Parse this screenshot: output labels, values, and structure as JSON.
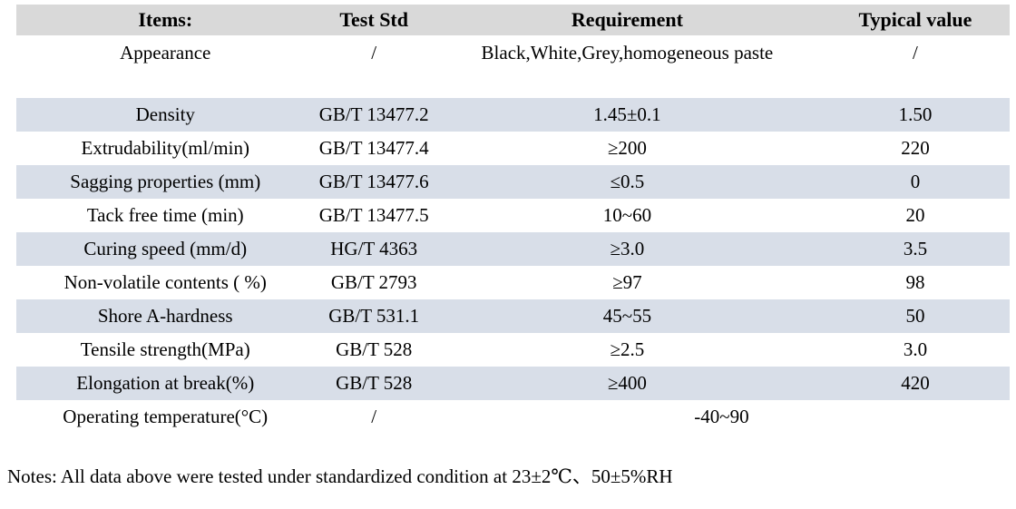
{
  "colors": {
    "page_bg": "#ffffff",
    "header_bg": "#d9d9d9",
    "stripe_bg": "#d8dee8",
    "text": "#000000"
  },
  "table": {
    "headers": [
      "Items:",
      "Test Std",
      "Requirement",
      "Typical value"
    ],
    "rows": [
      {
        "item": "Appearance",
        "test_std": "/",
        "requirement": "Black,White,Grey,homogeneous paste",
        "typical": "/"
      },
      {
        "item": "Density",
        "test_std": "GB/T 13477.2",
        "requirement": "1.45±0.1",
        "typical": "1.50"
      },
      {
        "item": "Extrudability(ml/min)",
        "test_std": "GB/T 13477.4",
        "requirement": "≥200",
        "typical": "220"
      },
      {
        "item": "Sagging properties (mm)",
        "test_std": "GB/T 13477.6",
        "requirement": "≤0.5",
        "typical": "0"
      },
      {
        "item": "Tack free time (min)",
        "test_std": "GB/T 13477.5",
        "requirement": "10~60",
        "typical": "20"
      },
      {
        "item": "Curing speed (mm/d)",
        "test_std": "HG/T 4363",
        "requirement": "≥3.0",
        "typical": "3.5"
      },
      {
        "item": "Non-volatile contents ( %)",
        "test_std": "GB/T 2793",
        "requirement": "≥97",
        "typical": "98"
      },
      {
        "item": "Shore A-hardness",
        "test_std": "GB/T 531.1",
        "requirement": "45~55",
        "typical": "50"
      },
      {
        "item": "Tensile strength(MPa)",
        "test_std": "GB/T 528",
        "requirement": "≥2.5",
        "typical": "3.0"
      },
      {
        "item": "Elongation at break(%)",
        "test_std": "GB/T 528",
        "requirement": "≥400",
        "typical": "420"
      },
      {
        "item": "Operating temperature(°C)",
        "test_std": "/",
        "requirement": "-40~90",
        "typical": null,
        "requirement_colspan": 2
      }
    ]
  },
  "notes": "Notes: All data above were tested under standardized condition at 23±2℃、50±5%RH"
}
